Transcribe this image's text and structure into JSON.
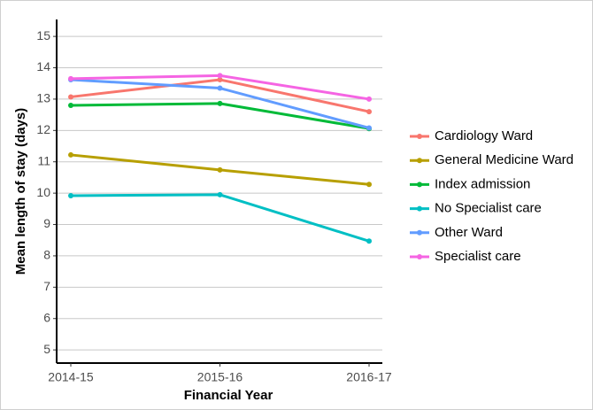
{
  "chart_data": {
    "type": "line",
    "x_label": "Financial Year",
    "y_label": "Mean length of stay (days)",
    "categories": [
      "2014-15",
      "2015-16",
      "2016-17"
    ],
    "series": [
      {
        "name": "Cardiology Ward",
        "color": "#F8766D",
        "values": [
          13.07,
          13.62,
          12.6
        ]
      },
      {
        "name": "General Medicine Ward",
        "color": "#B79F00",
        "values": [
          11.22,
          10.74,
          10.28
        ]
      },
      {
        "name": "Index admission",
        "color": "#00BA38",
        "values": [
          12.8,
          12.86,
          12.06
        ]
      },
      {
        "name": "No Specialist care",
        "color": "#00BFC4",
        "values": [
          9.92,
          9.95,
          8.47
        ]
      },
      {
        "name": "Other Ward",
        "color": "#619CFF",
        "values": [
          13.62,
          13.35,
          12.08
        ]
      },
      {
        "name": "Specialist care",
        "color": "#F564E3",
        "values": [
          13.65,
          13.75,
          13.0
        ]
      }
    ],
    "ylim": [
      4.58,
      15.54
    ],
    "yticks": [
      5,
      6,
      7,
      8,
      9,
      10,
      11,
      12,
      13,
      14,
      15
    ],
    "grid": true,
    "legend": "right"
  }
}
